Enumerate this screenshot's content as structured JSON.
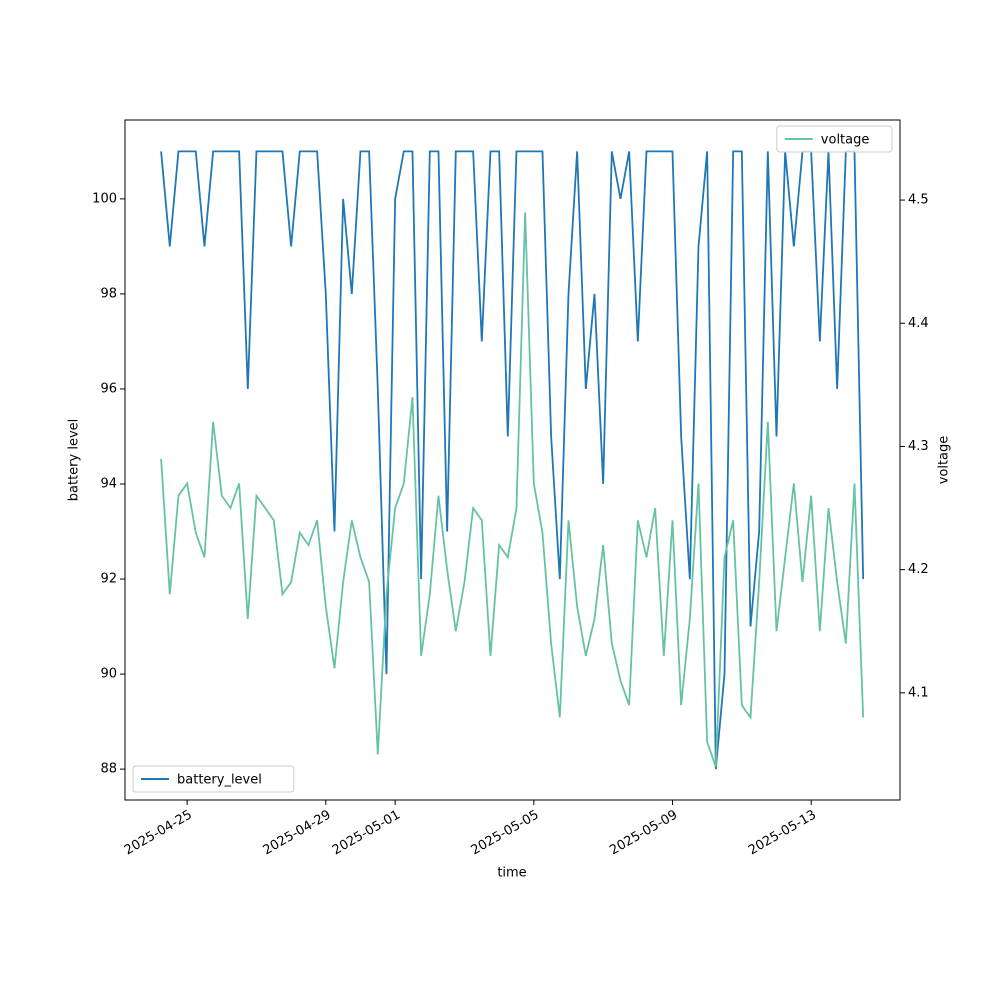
{
  "chart_data": {
    "type": "line",
    "xlabel": "time",
    "ylabel": "battery level",
    "y2label": "voltage",
    "x": [
      "2025-04-24T06:00",
      "2025-04-24T12:00",
      "2025-04-24T18:00",
      "2025-04-25T00:00",
      "2025-04-25T06:00",
      "2025-04-25T12:00",
      "2025-04-25T18:00",
      "2025-04-26T00:00",
      "2025-04-26T06:00",
      "2025-04-26T12:00",
      "2025-04-26T18:00",
      "2025-04-27T00:00",
      "2025-04-27T06:00",
      "2025-04-27T12:00",
      "2025-04-27T18:00",
      "2025-04-28T00:00",
      "2025-04-28T06:00",
      "2025-04-28T12:00",
      "2025-04-28T18:00",
      "2025-04-29T00:00",
      "2025-04-29T06:00",
      "2025-04-29T12:00",
      "2025-04-29T18:00",
      "2025-04-30T00:00",
      "2025-04-30T06:00",
      "2025-04-30T12:00",
      "2025-04-30T18:00",
      "2025-05-01T00:00",
      "2025-05-01T06:00",
      "2025-05-01T12:00",
      "2025-05-01T18:00",
      "2025-05-02T00:00",
      "2025-05-02T06:00",
      "2025-05-02T12:00",
      "2025-05-02T18:00",
      "2025-05-03T00:00",
      "2025-05-03T06:00",
      "2025-05-03T12:00",
      "2025-05-03T18:00",
      "2025-05-04T00:00",
      "2025-05-04T06:00",
      "2025-05-04T12:00",
      "2025-05-04T18:00",
      "2025-05-05T00:00",
      "2025-05-05T06:00",
      "2025-05-05T12:00",
      "2025-05-05T18:00",
      "2025-05-06T00:00",
      "2025-05-06T06:00",
      "2025-05-06T12:00",
      "2025-05-06T18:00",
      "2025-05-07T00:00",
      "2025-05-07T06:00",
      "2025-05-07T12:00",
      "2025-05-07T18:00",
      "2025-05-08T00:00",
      "2025-05-08T06:00",
      "2025-05-08T12:00",
      "2025-05-08T18:00",
      "2025-05-09T00:00",
      "2025-05-09T06:00",
      "2025-05-09T12:00",
      "2025-05-09T18:00",
      "2025-05-10T00:00",
      "2025-05-10T06:00",
      "2025-05-10T12:00",
      "2025-05-10T18:00",
      "2025-05-11T00:00",
      "2025-05-11T06:00",
      "2025-05-11T12:00",
      "2025-05-11T18:00",
      "2025-05-12T00:00",
      "2025-05-12T06:00",
      "2025-05-12T12:00",
      "2025-05-12T18:00",
      "2025-05-13T00:00",
      "2025-05-13T06:00",
      "2025-05-13T12:00",
      "2025-05-13T18:00",
      "2025-05-14T00:00",
      "2025-05-14T06:00",
      "2025-05-14T12:00"
    ],
    "series": [
      {
        "name": "battery_level",
        "color": "#1f77b4",
        "axis": "y",
        "legend": "lower left",
        "values": [
          101,
          99,
          101,
          101,
          101,
          99,
          101,
          101,
          101,
          101,
          96,
          101,
          101,
          101,
          101,
          99,
          101,
          101,
          101,
          98,
          93,
          100,
          98,
          101,
          101,
          96,
          90,
          100,
          101,
          101,
          92,
          101,
          101,
          93,
          101,
          101,
          101,
          97,
          101,
          101,
          95,
          101,
          101,
          101,
          101,
          95,
          92,
          98,
          101,
          96,
          98,
          94,
          101,
          100,
          101,
          97,
          101,
          101,
          101,
          101,
          95,
          92,
          99,
          101,
          88,
          90,
          101,
          101,
          91,
          93,
          101,
          95,
          101,
          99,
          101,
          101,
          97,
          101,
          96,
          101,
          101,
          92
        ]
      },
      {
        "name": "voltage",
        "color": "#66c2a5",
        "axis": "y2",
        "legend": "upper right",
        "values": [
          4.29,
          4.18,
          4.26,
          4.27,
          4.23,
          4.21,
          4.32,
          4.26,
          4.25,
          4.27,
          4.16,
          4.26,
          4.25,
          4.24,
          4.18,
          4.19,
          4.23,
          4.22,
          4.24,
          4.17,
          4.12,
          4.19,
          4.24,
          4.21,
          4.19,
          4.05,
          4.18,
          4.25,
          4.27,
          4.34,
          4.13,
          4.18,
          4.26,
          4.2,
          4.15,
          4.19,
          4.25,
          4.24,
          4.13,
          4.22,
          4.21,
          4.25,
          4.49,
          4.27,
          4.23,
          4.14,
          4.08,
          4.24,
          4.17,
          4.13,
          4.16,
          4.22,
          4.14,
          4.11,
          4.09,
          4.24,
          4.21,
          4.25,
          4.13,
          4.24,
          4.09,
          4.16,
          4.27,
          4.06,
          4.04,
          4.21,
          4.24,
          4.09,
          4.08,
          4.19,
          4.32,
          4.15,
          4.21,
          4.27,
          4.19,
          4.26,
          4.15,
          4.25,
          4.19,
          4.14,
          4.27,
          4.08
        ]
      }
    ],
    "xlim": [
      "2025-04-23T05:00",
      "2025-05-15T13:30"
    ],
    "xticks": [
      "2025-04-25",
      "2025-04-29",
      "2025-05-01",
      "2025-05-05",
      "2025-05-09",
      "2025-05-13"
    ],
    "ylim": [
      87.35,
      101.66
    ],
    "yticks": [
      88,
      90,
      92,
      94,
      96,
      98,
      100
    ],
    "y2lim": [
      4.013,
      4.565
    ],
    "y2ticks": [
      4.1,
      4.2,
      4.3,
      4.4,
      4.5
    ],
    "grid": false
  }
}
